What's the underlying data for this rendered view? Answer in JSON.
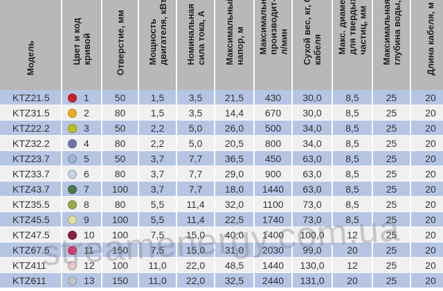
{
  "headers": [
    "Модель",
    "Цвет и код\nкривой",
    "Отверстие, мм",
    "Мощность\nдвигателя, кВт",
    "Номинальная\nсила тока, А",
    "Максимальный\nнапор, м",
    "Максимальная\nпроизводит-ть,\nл/мин",
    "Сухой вес, кг, без\nкабеля",
    "Макс. диаметр\nдля твердых\nчастиц, мм",
    "Максимальная\nглубина воды, м",
    "Длина кабеля, м"
  ],
  "rows": [
    {
      "model": "KTZ21.5",
      "color": "#cc1f2e",
      "code": "1",
      "opening": "50",
      "power": "1,5",
      "current": "3,5",
      "head": "21,5",
      "flow": "430",
      "weight": "30,0",
      "solids": "8,5",
      "depth": "25",
      "cable": "20"
    },
    {
      "model": "KTZ31.5",
      "color": "#e8b020",
      "code": "2",
      "opening": "80",
      "power": "1,5",
      "current": "3,5",
      "head": "14,4",
      "flow": "670",
      "weight": "30,0",
      "solids": "8,5",
      "depth": "25",
      "cable": "20"
    },
    {
      "model": "KTZ22.2",
      "color": "#b8c224",
      "code": "3",
      "opening": "50",
      "power": "2,2",
      "current": "5,0",
      "head": "26,0",
      "flow": "500",
      "weight": "34,0",
      "solids": "8,5",
      "depth": "25",
      "cable": "20"
    },
    {
      "model": "KTZ32.2",
      "color": "#6e73b0",
      "code": "4",
      "opening": "80",
      "power": "2,2",
      "current": "5,0",
      "head": "20,5",
      "flow": "800",
      "weight": "34,0",
      "solids": "8,5",
      "depth": "25",
      "cable": "20"
    },
    {
      "model": "KTZ23.7",
      "color": "#9cb3d8",
      "code": "5",
      "opening": "50",
      "power": "3,7",
      "current": "7,7",
      "head": "36,5",
      "flow": "450",
      "weight": "63,0",
      "solids": "8,5",
      "depth": "25",
      "cable": "20"
    },
    {
      "model": "KTZ33.7",
      "color": "#c9d3e6",
      "code": "6",
      "opening": "80",
      "power": "3,7",
      "current": "7,7",
      "head": "29,0",
      "flow": "900",
      "weight": "63,0",
      "solids": "8,5",
      "depth": "25",
      "cable": "20"
    },
    {
      "model": "KTZ43.7",
      "color": "#4f7a4a",
      "code": "7",
      "opening": "100",
      "power": "3,7",
      "current": "7,7",
      "head": "18,0",
      "flow": "1440",
      "weight": "63,0",
      "solids": "8,5",
      "depth": "25",
      "cable": "20"
    },
    {
      "model": "KTZ35.5",
      "color": "#9aa84a",
      "code": "8",
      "opening": "80",
      "power": "5,5",
      "current": "11,4",
      "head": "32,0",
      "flow": "1100",
      "weight": "73,0",
      "solids": "8,5",
      "depth": "25",
      "cable": "20"
    },
    {
      "model": "KTZ45.5",
      "color": "#dde0a0",
      "code": "9",
      "opening": "100",
      "power": "5,5",
      "current": "11,4",
      "head": "22,5",
      "flow": "1740",
      "weight": "73,0",
      "solids": "8,5",
      "depth": "25",
      "cable": "20"
    },
    {
      "model": "KTZ47.5",
      "color": "#8a2042",
      "code": "10",
      "opening": "100",
      "power": "7,5",
      "current": "15,0",
      "head": "40,0",
      "flow": "1400",
      "weight": "100,0",
      "solids": "12",
      "depth": "25",
      "cable": "20"
    },
    {
      "model": "KTZ67.5",
      "color": "#d63a6e",
      "code": "11",
      "opening": "150",
      "power": "7,5",
      "current": "15,0",
      "head": "31,0",
      "flow": "2030",
      "weight": "99,0",
      "solids": "20",
      "depth": "25",
      "cable": "20"
    },
    {
      "model": "KTZ411",
      "color": "#e8c3c8",
      "code": "12",
      "opening": "100",
      "power": "11,0",
      "current": "22,0",
      "head": "48,5",
      "flow": "1440",
      "weight": "130,0",
      "solids": "12",
      "depth": "25",
      "cable": "20"
    },
    {
      "model": "KTZ611",
      "color": "#c0c3c8",
      "code": "13",
      "opening": "150",
      "power": "11,0",
      "current": "22,0",
      "head": "32,5",
      "flow": "2440",
      "weight": "131,0",
      "solids": "20",
      "depth": "25",
      "cable": "20"
    }
  ],
  "watermark": "streamenergy.com.ua"
}
